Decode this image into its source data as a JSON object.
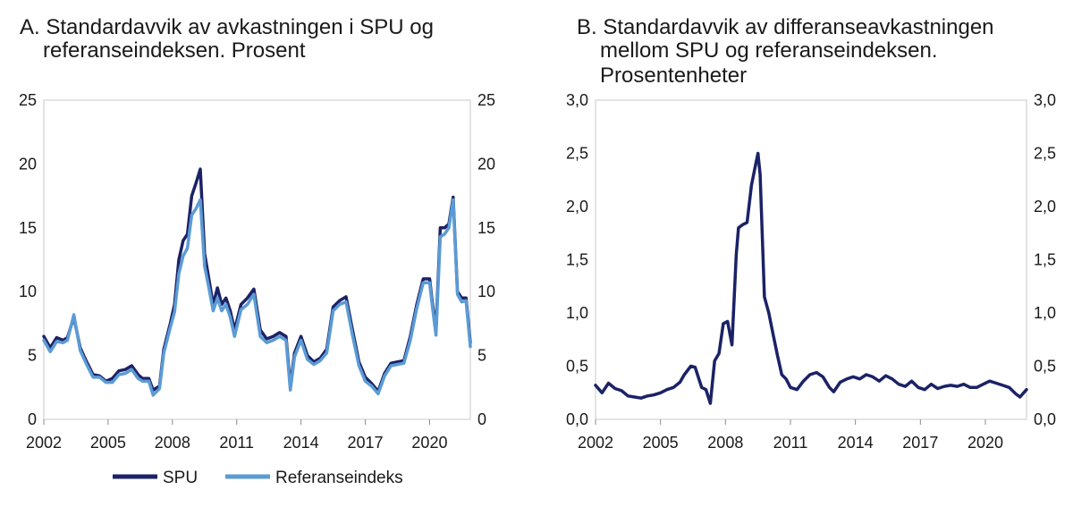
{
  "chart_data": [
    {
      "type": "line",
      "title_lines": [
        "A.  Standardavvik av avkastningen i SPU og",
        "referanseindeksen. Prosent"
      ],
      "xlabel": "",
      "ylabel": "",
      "xlim": [
        2002,
        2021.9
      ],
      "ylim": [
        0,
        25
      ],
      "xticks": [
        "2002",
        "2005",
        "2008",
        "2011",
        "2014",
        "2017",
        "2020"
      ],
      "yticks": [
        "0",
        "5",
        "10",
        "15",
        "20",
        "25"
      ],
      "grid": false,
      "legend": "bottom-center",
      "series": [
        {
          "name": "SPU",
          "color": "#1b2266",
          "x": [
            2002.0,
            2002.3,
            2002.6,
            2002.9,
            2003.1,
            2003.4,
            2003.7,
            2004.0,
            2004.3,
            2004.6,
            2004.9,
            2005.2,
            2005.5,
            2005.8,
            2006.1,
            2006.4,
            2006.6,
            2006.9,
            2007.1,
            2007.4,
            2007.6,
            2007.9,
            2008.1,
            2008.3,
            2008.5,
            2008.7,
            2008.9,
            2009.1,
            2009.3,
            2009.5,
            2009.7,
            2009.9,
            2010.1,
            2010.3,
            2010.5,
            2010.7,
            2010.9,
            2011.2,
            2011.5,
            2011.8,
            2012.1,
            2012.4,
            2012.7,
            2013.0,
            2013.3,
            2013.5,
            2013.7,
            2014.0,
            2014.3,
            2014.6,
            2014.9,
            2015.2,
            2015.5,
            2015.8,
            2016.1,
            2016.4,
            2016.7,
            2017.0,
            2017.3,
            2017.6,
            2017.9,
            2018.2,
            2018.5,
            2018.8,
            2019.1,
            2019.4,
            2019.7,
            2020.0,
            2020.1,
            2020.3,
            2020.5,
            2020.7,
            2020.9,
            2021.1,
            2021.3,
            2021.5,
            2021.7,
            2021.9
          ],
          "values": [
            6.5,
            5.6,
            6.4,
            6.2,
            6.4,
            8.0,
            5.6,
            4.5,
            3.5,
            3.4,
            3.0,
            3.2,
            3.8,
            3.9,
            4.2,
            3.5,
            3.2,
            3.2,
            2.3,
            2.6,
            5.5,
            7.5,
            9.0,
            12.5,
            14.0,
            14.5,
            17.5,
            18.5,
            19.6,
            13.0,
            11.0,
            9.0,
            10.3,
            9.0,
            9.5,
            8.5,
            7.0,
            9.0,
            9.5,
            10.2,
            7.0,
            6.3,
            6.5,
            6.8,
            6.5,
            2.6,
            5.2,
            6.5,
            5.0,
            4.5,
            4.8,
            5.5,
            8.8,
            9.3,
            9.6,
            7.0,
            4.5,
            3.3,
            2.8,
            2.2,
            3.6,
            4.4,
            4.5,
            4.6,
            6.5,
            9.0,
            11.0,
            11.0,
            9.5,
            7.0,
            15.0,
            15.0,
            15.3,
            17.4,
            10.0,
            9.5,
            9.5,
            6.0
          ]
        },
        {
          "name": "Referanseindeks",
          "color": "#5b9bd5",
          "x": [
            2002.0,
            2002.3,
            2002.6,
            2002.9,
            2003.1,
            2003.4,
            2003.7,
            2004.0,
            2004.3,
            2004.6,
            2004.9,
            2005.2,
            2005.5,
            2005.8,
            2006.1,
            2006.4,
            2006.6,
            2006.9,
            2007.1,
            2007.4,
            2007.6,
            2007.9,
            2008.1,
            2008.3,
            2008.5,
            2008.7,
            2008.9,
            2009.1,
            2009.3,
            2009.5,
            2009.7,
            2009.9,
            2010.1,
            2010.3,
            2010.5,
            2010.7,
            2010.9,
            2011.2,
            2011.5,
            2011.8,
            2012.1,
            2012.4,
            2012.7,
            2013.0,
            2013.3,
            2013.5,
            2013.7,
            2014.0,
            2014.3,
            2014.6,
            2014.9,
            2015.2,
            2015.5,
            2015.8,
            2016.1,
            2016.4,
            2016.7,
            2017.0,
            2017.3,
            2017.6,
            2017.9,
            2018.2,
            2018.5,
            2018.8,
            2019.1,
            2019.4,
            2019.7,
            2020.0,
            2020.1,
            2020.3,
            2020.5,
            2020.7,
            2020.9,
            2021.1,
            2021.3,
            2021.5,
            2021.7,
            2021.9
          ],
          "values": [
            6.2,
            5.3,
            6.1,
            6.0,
            6.2,
            8.2,
            5.4,
            4.3,
            3.3,
            3.3,
            2.9,
            2.9,
            3.5,
            3.6,
            3.9,
            3.2,
            3.0,
            3.0,
            1.9,
            2.4,
            5.2,
            7.2,
            8.4,
            11.4,
            12.8,
            13.4,
            16.0,
            16.5,
            17.2,
            12.0,
            10.3,
            8.5,
            9.5,
            8.5,
            9.0,
            8.0,
            6.5,
            8.6,
            9.0,
            9.8,
            6.5,
            6.0,
            6.2,
            6.5,
            6.2,
            2.3,
            4.9,
            6.2,
            4.7,
            4.3,
            4.6,
            5.2,
            8.5,
            9.0,
            9.2,
            6.6,
            4.2,
            3.0,
            2.6,
            2.0,
            3.4,
            4.2,
            4.3,
            4.4,
            6.2,
            8.7,
            10.7,
            10.7,
            9.2,
            6.6,
            14.3,
            14.5,
            15.0,
            17.2,
            9.8,
            9.2,
            9.3,
            5.7
          ]
        }
      ]
    },
    {
      "type": "line",
      "title_lines": [
        "B. Standardavvik av differanseavkastningen",
        "mellom SPU og referanseindeksen.",
        "Prosentenheter"
      ],
      "xlabel": "",
      "ylabel": "",
      "xlim": [
        2002,
        2021.9
      ],
      "ylim": [
        0,
        3.0
      ],
      "xticks": [
        "2002",
        "2005",
        "2008",
        "2011",
        "2014",
        "2017",
        "2020"
      ],
      "yticks": [
        "0,0",
        "0,5",
        "1,0",
        "1,5",
        "2,0",
        "2,5",
        "3,0"
      ],
      "grid": false,
      "legend": "none",
      "series": [
        {
          "name": "",
          "color": "#1b2266",
          "x": [
            2002.0,
            2002.3,
            2002.6,
            2002.9,
            2003.2,
            2003.5,
            2003.8,
            2004.1,
            2004.4,
            2004.7,
            2005.0,
            2005.3,
            2005.6,
            2005.9,
            2006.1,
            2006.4,
            2006.6,
            2006.9,
            2007.1,
            2007.3,
            2007.5,
            2007.7,
            2007.9,
            2008.1,
            2008.3,
            2008.5,
            2008.6,
            2008.8,
            2009.0,
            2009.2,
            2009.4,
            2009.5,
            2009.6,
            2009.8,
            2010.0,
            2010.2,
            2010.4,
            2010.6,
            2010.8,
            2011.0,
            2011.3,
            2011.6,
            2011.9,
            2012.2,
            2012.5,
            2012.8,
            2013.0,
            2013.3,
            2013.6,
            2013.9,
            2014.2,
            2014.5,
            2014.8,
            2015.1,
            2015.4,
            2015.7,
            2016.0,
            2016.3,
            2016.6,
            2016.9,
            2017.2,
            2017.5,
            2017.8,
            2018.1,
            2018.4,
            2018.7,
            2019.0,
            2019.3,
            2019.6,
            2019.9,
            2020.2,
            2020.5,
            2020.8,
            2021.1,
            2021.4,
            2021.6,
            2021.9
          ],
          "values": [
            0.32,
            0.25,
            0.34,
            0.29,
            0.27,
            0.22,
            0.21,
            0.2,
            0.22,
            0.23,
            0.25,
            0.28,
            0.3,
            0.35,
            0.42,
            0.5,
            0.49,
            0.3,
            0.28,
            0.15,
            0.55,
            0.62,
            0.9,
            0.92,
            0.7,
            1.55,
            1.8,
            1.83,
            1.85,
            2.2,
            2.4,
            2.5,
            2.3,
            1.15,
            1.0,
            0.8,
            0.6,
            0.42,
            0.38,
            0.3,
            0.28,
            0.36,
            0.42,
            0.44,
            0.4,
            0.3,
            0.26,
            0.35,
            0.38,
            0.4,
            0.38,
            0.42,
            0.4,
            0.36,
            0.41,
            0.38,
            0.33,
            0.31,
            0.36,
            0.3,
            0.28,
            0.33,
            0.29,
            0.31,
            0.32,
            0.31,
            0.33,
            0.3,
            0.3,
            0.33,
            0.36,
            0.34,
            0.32,
            0.3,
            0.24,
            0.21,
            0.28
          ]
        }
      ]
    }
  ]
}
